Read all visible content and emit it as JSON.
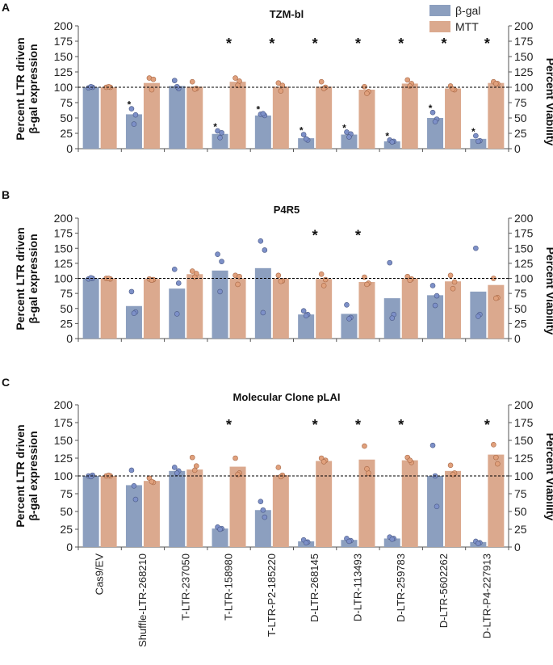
{
  "colors": {
    "bgal": "#8c9fbf",
    "mtt": "#dba98e",
    "bgal_dot": "#7d90c8",
    "mtt_dot": "#e0a07c"
  },
  "axis_labels": {
    "left_line1": "Percent LTR driven",
    "left_line2": "β-gal expression",
    "right": "Percent Viability"
  },
  "legend": {
    "bgal": "β-gal",
    "mtt": "MTT"
  },
  "chart_data": {
    "type": "bar",
    "categories": [
      "Cas9/EV",
      "Shuffle-LTR-268210",
      "T-LTR-237050",
      "T-LTR-158980",
      "T-LTR-P2-185220",
      "D-LTR-268145",
      "D-LTR-113493",
      "D-LTR-259783",
      "D-LTR-5602262",
      "D-LTR-P4-227913"
    ],
    "yticks": [
      0,
      25,
      50,
      75,
      100,
      125,
      150,
      175,
      200
    ],
    "ylim": [
      0,
      200
    ],
    "reference_line": 100,
    "panels": [
      {
        "label": "A",
        "title": "TZM-bl",
        "series": [
          {
            "name": "β-gal",
            "values": [
              100,
              56,
              102,
              24,
              54,
              17,
              23,
              12,
              50,
              16
            ],
            "points": [
              [
                99,
                100,
                101
              ],
              [
                65,
                55,
                40
              ],
              [
                111,
                98,
                101
              ],
              [
                29,
                26,
                18
              ],
              [
                56,
                54,
                57
              ],
              [
                23,
                14,
                16
              ],
              [
                27,
                24,
                19
              ],
              [
                14,
                12,
                11
              ],
              [
                59,
                48,
                44
              ],
              [
                21,
                13,
                12
              ]
            ]
          },
          {
            "name": "MTT",
            "values": [
              100,
              107,
              101,
              109,
              101,
              101,
              96,
              106,
              98,
              107
            ],
            "points": [
              [
                100,
                100,
                101
              ],
              [
                115,
                113,
                96
              ],
              [
                109,
                98,
                97
              ],
              [
                115,
                110,
                103
              ],
              [
                107,
                103,
                94
              ],
              [
                109,
                100,
                98
              ],
              [
                101,
                93,
                90
              ],
              [
                112,
                106,
                102
              ],
              [
                102,
                96,
                97
              ],
              [
                109,
                106,
                106
              ]
            ]
          }
        ],
        "sig_small": [
          1,
          3,
          4,
          5,
          6,
          7,
          8,
          9
        ],
        "sig_large": [
          3,
          4,
          5,
          6,
          7,
          8,
          9
        ]
      },
      {
        "label": "B",
        "title": "P4R5",
        "series": [
          {
            "name": "β-gal",
            "values": [
              100,
              54,
              83,
              113,
              117,
              40,
              41,
              67,
              72,
              78
            ],
            "points": [
              [
                99,
                100,
                101
              ],
              [
                78,
                44,
                42
              ],
              [
                115,
                92,
                41
              ],
              [
                140,
                128,
                78
              ],
              [
                162,
                147,
                43
              ],
              [
                46,
                40,
                38
              ],
              [
                56,
                35,
                33
              ],
              [
                126,
                40,
                34
              ],
              [
                88,
                71,
                55
              ],
              [
                150,
                40,
                37
              ]
            ]
          },
          {
            "name": "MTT",
            "values": [
              100,
              99,
              107,
              100,
              100,
              99,
              94,
              100,
              95,
              89
            ],
            "points": [
              [
                100,
                99,
                100
              ],
              [
                99,
                98,
                97
              ],
              [
                112,
                108,
                102
              ],
              [
                105,
                103,
                90
              ],
              [
                105,
                96,
                95
              ],
              [
                107,
                98,
                88
              ],
              [
                102,
                92,
                90
              ],
              [
                103,
                99,
                97
              ],
              [
                105,
                94,
                83
              ],
              [
                100,
                68,
                67
              ]
            ]
          }
        ],
        "sig_small": [],
        "sig_large": [
          5,
          6
        ]
      },
      {
        "label": "C",
        "title": "Molecular Clone pLAI",
        "series": [
          {
            "name": "β-gal",
            "values": [
              100,
              87,
              107,
              26,
              52,
              8,
              10,
              12,
              100,
              7
            ],
            "points": [
              [
                100,
                101,
                99
              ],
              [
                108,
                67,
                86
              ],
              [
                112,
                107,
                104
              ],
              [
                28,
                26,
                25
              ],
              [
                64,
                42,
                52
              ],
              [
                10,
                7,
                6
              ],
              [
                12,
                9,
                8
              ],
              [
                14,
                12,
                11
              ],
              [
                143,
                57,
                100
              ],
              [
                8,
                6,
                5
              ]
            ]
          },
          {
            "name": "MTT",
            "values": [
              100,
              93,
              109,
              113,
              101,
              121,
              123,
              122,
              107,
              130
            ],
            "points": [
              [
                100,
                100,
                101
              ],
              [
                97,
                91,
                92
              ],
              [
                126,
                114,
                108
              ],
              [
                125,
                104,
                102
              ],
              [
                112,
                101,
                99
              ],
              [
                125,
                122,
                120
              ],
              [
                142,
                104,
                110
              ],
              [
                126,
                119,
                122
              ],
              [
                115,
                104,
                102
              ],
              [
                144,
                117,
                126
              ]
            ]
          }
        ],
        "sig_small": [],
        "sig_large": [
          3,
          5,
          6,
          7,
          9
        ]
      }
    ]
  }
}
